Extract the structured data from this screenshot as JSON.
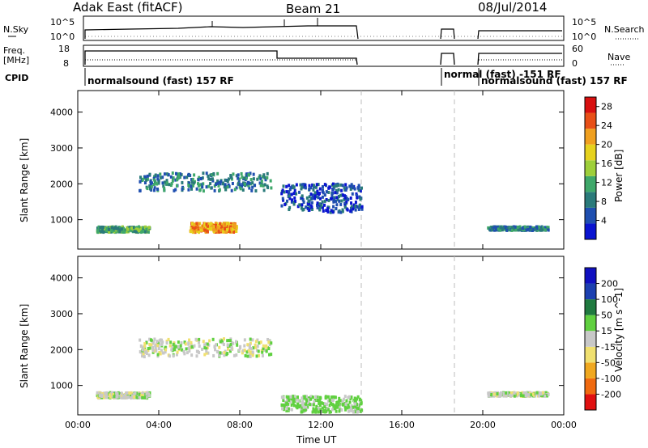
{
  "header": {
    "radar": "Adak East (fitACF)",
    "beam": "Beam 21",
    "date": "08/Jul/2014"
  },
  "top_panels": {
    "nsky_label": "N.Sky",
    "nsky_ticks": [
      "10^5",
      "10^0"
    ],
    "nsearch_label": "N.Search",
    "nsearch_ticks": [
      "10^5",
      "10^0"
    ],
    "freq_label": "Freq.",
    "freq_unit": "[MHz]",
    "freq_ticks": [
      "18",
      "8"
    ],
    "nave_label": "Nave",
    "nave_ticks": [
      "60",
      "0"
    ],
    "cpid_label": "CPID",
    "cpid_segments": [
      {
        "text": "normalsound (fast) 157 RF"
      },
      {
        "text": "normal (fast) -151 RF"
      },
      {
        "text": "normalsound (fast) 157 RF"
      }
    ]
  },
  "colors": {
    "power_scale": [
      "#0a14d0",
      "#1f4fb0",
      "#2a7a7a",
      "#3fa86a",
      "#9ecf3a",
      "#e6d21e",
      "#f0a020",
      "#e85018",
      "#d81010"
    ],
    "velocity_scale": [
      "#e01010",
      "#f06a10",
      "#f0a820",
      "#f0e070",
      "#c8c8c8",
      "#60d040",
      "#207a40",
      "#1c40b0",
      "#1010c0"
    ]
  },
  "chart_data": [
    {
      "type": "heatmap",
      "title": "",
      "xlabel": "",
      "ylabel": "Slant Range [km]",
      "x_tick_labels": [
        "00:00",
        "04:00",
        "08:00",
        "12:00",
        "16:00",
        "20:00",
        "00:00"
      ],
      "y_tick_labels": [
        "1000",
        "2000",
        "3000",
        "4000"
      ],
      "xlim": [
        0,
        24
      ],
      "ylim": [
        180,
        4600
      ],
      "colorbar": {
        "label": "Power [dB]",
        "ticks": [
          "4",
          "8",
          "12",
          "16",
          "20",
          "24",
          "28"
        ],
        "range": [
          0,
          30
        ]
      },
      "dashed_lines_hours": [
        14.0,
        18.6
      ],
      "series": [
        {
          "x": [
            0.9,
            3.5
          ],
          "y": [
            650,
            800
          ],
          "level": 3
        },
        {
          "x": [
            3.0,
            9.5
          ],
          "y": [
            1800,
            2300
          ],
          "level": 2
        },
        {
          "x": [
            5.5,
            7.8
          ],
          "y": [
            650,
            900
          ],
          "level": 6
        },
        {
          "x": [
            10.0,
            14.0
          ],
          "y": [
            1200,
            2000
          ],
          "level": 1
        },
        {
          "x": [
            20.2,
            23.2
          ],
          "y": [
            700,
            800
          ],
          "level": 2
        }
      ]
    },
    {
      "type": "heatmap",
      "title": "",
      "xlabel": "Time UT",
      "ylabel": "Slant Range [km]",
      "x_tick_labels": [
        "00:00",
        "04:00",
        "08:00",
        "12:00",
        "16:00",
        "20:00",
        "00:00"
      ],
      "y_tick_labels": [
        "1000",
        "2000",
        "3000",
        "4000"
      ],
      "xlim": [
        0,
        24
      ],
      "ylim": [
        180,
        4600
      ],
      "colorbar": {
        "label": "Velocity [m s^-1]",
        "ticks": [
          "200",
          "100",
          "50",
          "15",
          "-15",
          "-50",
          "-100",
          "-200"
        ],
        "range": [
          -250,
          250
        ]
      },
      "dashed_lines_hours": [
        14.0,
        18.6
      ],
      "series": [
        {
          "x": [
            0.9,
            3.5
          ],
          "y": [
            650,
            800
          ],
          "velocity": 0
        },
        {
          "x": [
            3.0,
            9.5
          ],
          "y": [
            1800,
            2300
          ],
          "velocity": 0
        },
        {
          "x": [
            10.0,
            14.0
          ],
          "y": [
            250,
            700
          ],
          "velocity": 30
        },
        {
          "x": [
            20.2,
            23.2
          ],
          "y": [
            700,
            800
          ],
          "velocity": 0
        }
      ]
    }
  ]
}
